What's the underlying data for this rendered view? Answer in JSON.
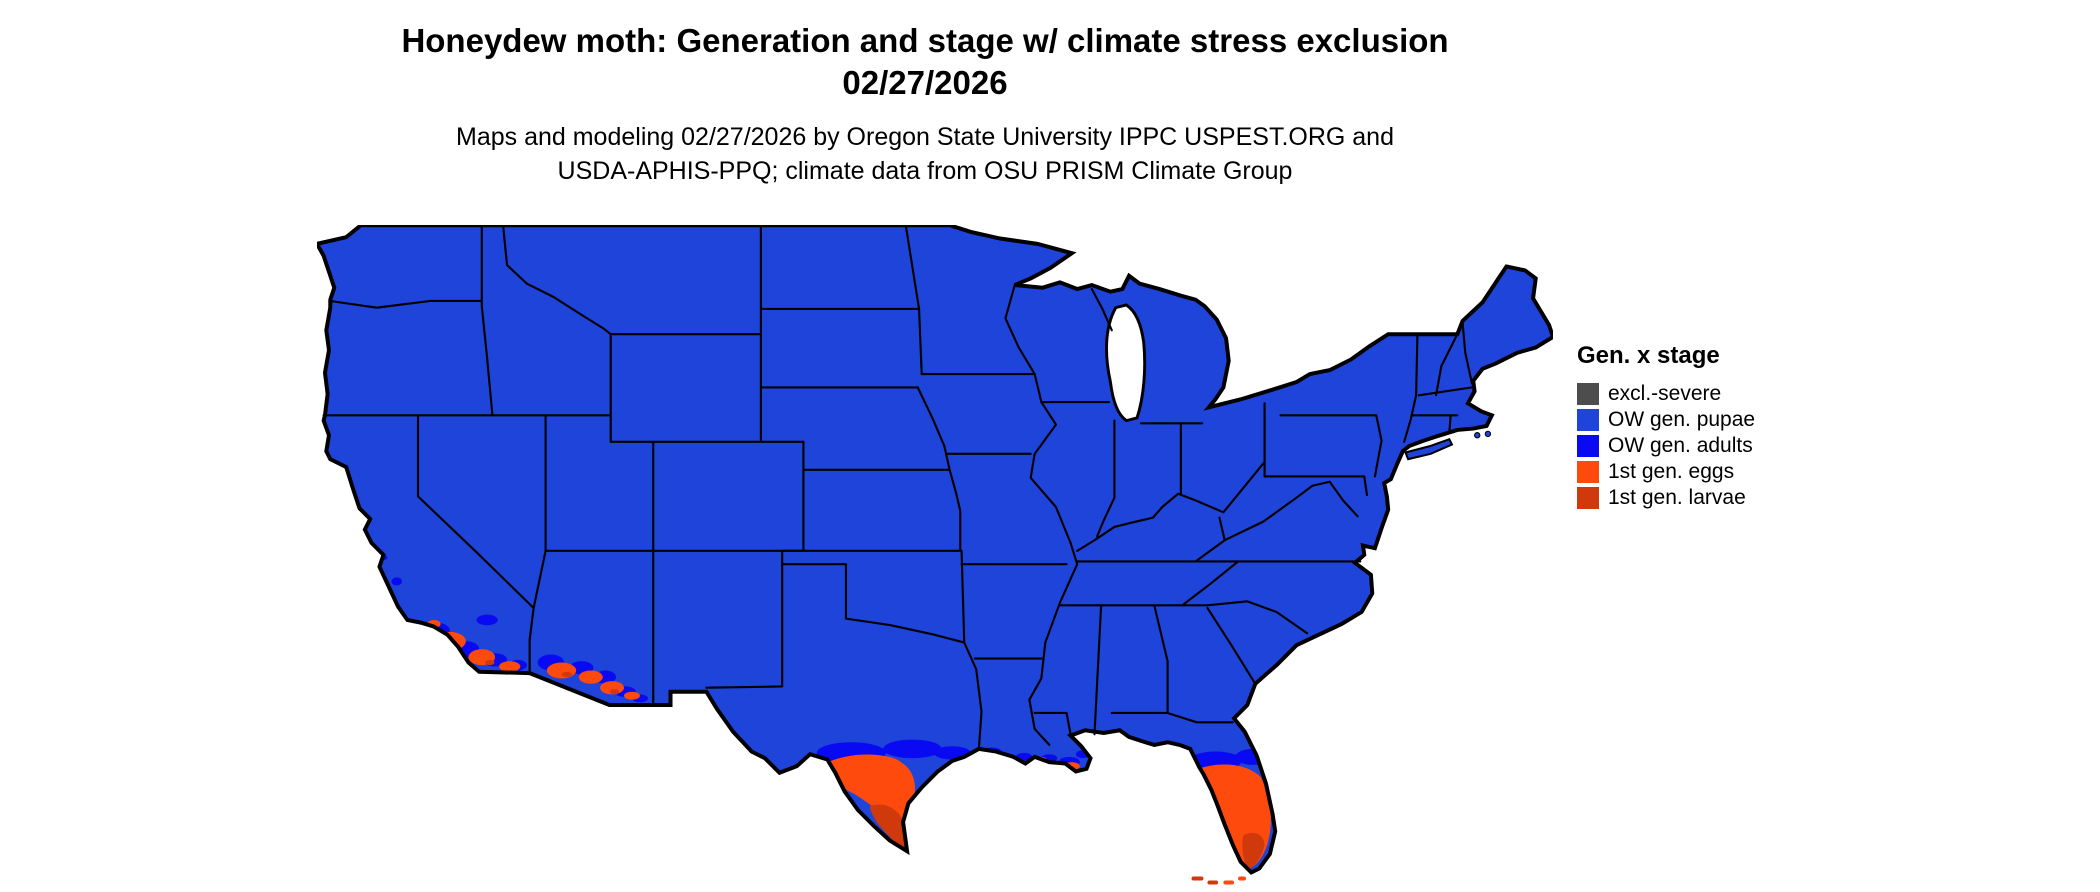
{
  "header": {
    "title_line1": "Honeydew moth: Generation and stage w/ climate stress exclusion",
    "title_line2": "02/27/2026",
    "subtitle_line1": "Maps and modeling 02/27/2026 by Oregon State University IPPC USPEST.ORG and",
    "subtitle_line2": "USDA-APHIS-PPQ; climate data from OSU PRISM Climate Group"
  },
  "palette": {
    "excluded": "#4D4D4D",
    "pupae": "#1E44D9",
    "adults": "#0A0AF2",
    "eggs": "#FE4A0D",
    "larvae": "#D0390B"
  },
  "legend": {
    "title": "Gen. x stage",
    "items": [
      {
        "key": "excluded",
        "label": "excl.-severe"
      },
      {
        "key": "pupae",
        "label": "OW gen. pupae"
      },
      {
        "key": "adults",
        "label": "OW gen. adults"
      },
      {
        "key": "eggs",
        "label": "1st gen. eggs"
      },
      {
        "key": "larvae",
        "label": "1st gen. larvae"
      }
    ]
  },
  "map": {
    "region": "Contiguous United States",
    "base_stage": "OW gen. pupae",
    "date_shown": "02/27/2026"
  }
}
